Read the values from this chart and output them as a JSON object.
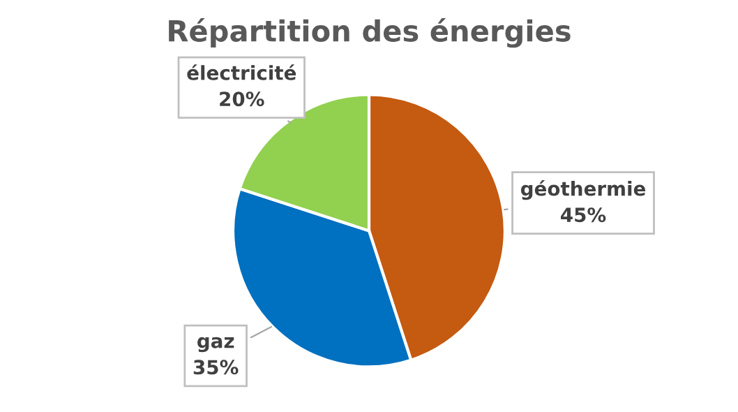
{
  "chart_data": {
    "type": "pie",
    "title": "Répartition des énergies",
    "categories": [
      "géothermie",
      "gaz",
      "électricité"
    ],
    "values": [
      45,
      35,
      20
    ],
    "value_labels": [
      "45%",
      "35%",
      "20%"
    ],
    "colors": [
      "#c55a11",
      "#0070c0",
      "#92d050"
    ],
    "legend": false
  }
}
